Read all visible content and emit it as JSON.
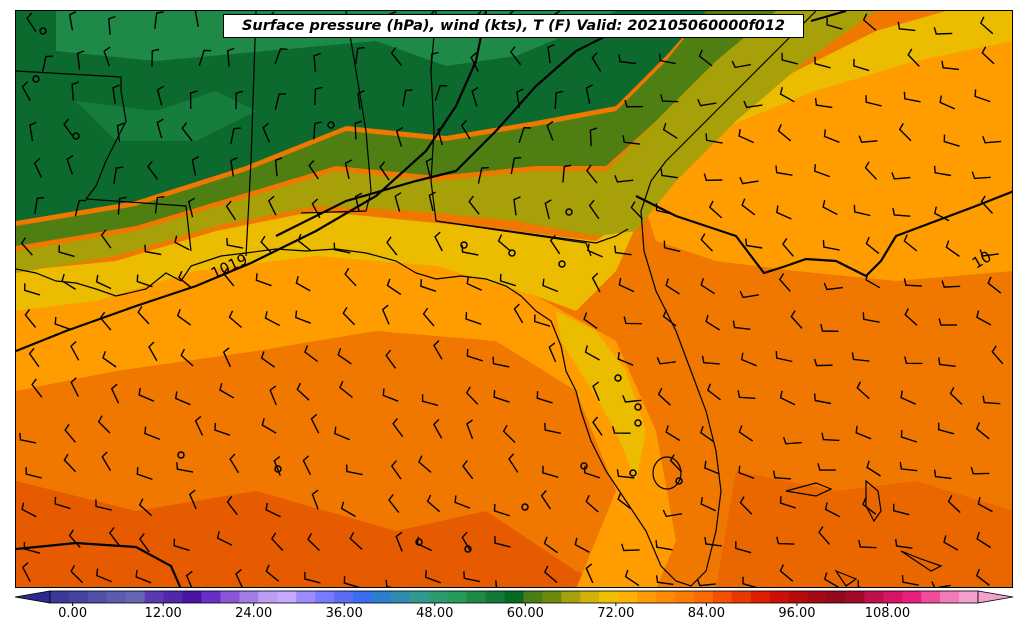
{
  "map": {
    "title": "Surface pressure (hPa), wind (kts), T (F) Valid: 202105060000f012",
    "isobar_label": "1019",
    "isobar_label_partial": "10",
    "colorbar": {
      "tick_labels": [
        "0.00",
        "12.00",
        "24.00",
        "36.00",
        "48.00",
        "60.00",
        "72.00",
        "84.00",
        "96.00",
        "108.00"
      ],
      "colors": [
        "#3a3a9a",
        "#44449e",
        "#5050a6",
        "#5c5cae",
        "#6666b4",
        "#5a3ab0",
        "#5228a8",
        "#4a14a0",
        "#6a2ec4",
        "#8a56d8",
        "#a37ce6",
        "#bc9ef0",
        "#c6a8ff",
        "#9e8cff",
        "#7a7aff",
        "#5c6cf6",
        "#3a6ef0",
        "#2e7ed0",
        "#2f8cb0",
        "#33988e",
        "#2e9a6e",
        "#259a5a",
        "#1e8a48",
        "#137838",
        "#086a22",
        "#4a7d15",
        "#6e8a0c",
        "#a7a00a",
        "#d2b204",
        "#f0c000",
        "#ffb000",
        "#ff9a00",
        "#ff8a00",
        "#ff7a00",
        "#ff6a00",
        "#f55000",
        "#ea3800",
        "#de2000",
        "#cc1008",
        "#b80a0a",
        "#a40a14",
        "#900a1a",
        "#a00a28",
        "#c0104a",
        "#d81464",
        "#e8207c",
        "#f04c9a",
        "#f47cb6",
        "#f4a0cc"
      ],
      "vmin": -3,
      "vmax": 120
    },
    "colors": {
      "dark_green": "#0c6a2e",
      "green": "#1f8a48",
      "olive": "#4f7e12",
      "yellow_olive": "#a8a008",
      "gold": "#ecbc00",
      "light_orange": "#ff9c00",
      "orange": "#f07800",
      "deep_orange": "#e65a00",
      "boundary": "#000000"
    },
    "station_markers": "circle-marker",
    "wind_symbol": "wind-barb-icon"
  }
}
